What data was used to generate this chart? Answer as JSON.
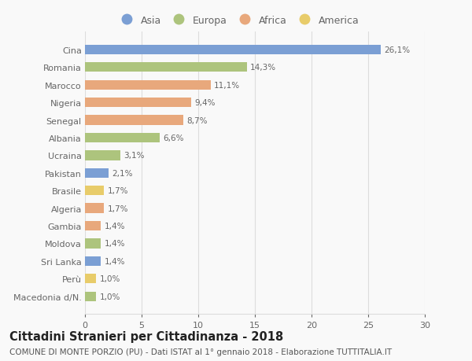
{
  "countries": [
    "Cina",
    "Romania",
    "Marocco",
    "Nigeria",
    "Senegal",
    "Albania",
    "Ucraina",
    "Pakistan",
    "Brasile",
    "Algeria",
    "Gambia",
    "Moldova",
    "Sri Lanka",
    "Perù",
    "Macedonia d/N."
  ],
  "values": [
    26.1,
    14.3,
    11.1,
    9.4,
    8.7,
    6.6,
    3.1,
    2.1,
    1.7,
    1.7,
    1.4,
    1.4,
    1.4,
    1.0,
    1.0
  ],
  "continents": [
    "Asia",
    "Europa",
    "Africa",
    "Africa",
    "Africa",
    "Europa",
    "Europa",
    "Asia",
    "America",
    "Africa",
    "Africa",
    "Europa",
    "Asia",
    "America",
    "Europa"
  ],
  "continent_colors": {
    "Asia": "#7b9fd4",
    "Europa": "#adc47d",
    "Africa": "#e8a87c",
    "America": "#e8cc6a"
  },
  "legend_order": [
    "Asia",
    "Europa",
    "Africa",
    "America"
  ],
  "title": "Cittadini Stranieri per Cittadinanza - 2018",
  "subtitle": "COMUNE DI MONTE PORZIO (PU) - Dati ISTAT al 1° gennaio 2018 - Elaborazione TUTTITALIA.IT",
  "xlim": [
    0,
    30
  ],
  "xticks": [
    0,
    5,
    10,
    15,
    20,
    25,
    30
  ],
  "bg_color": "#f9f9f9",
  "grid_color": "#dddddd",
  "bar_height": 0.55,
  "title_fontsize": 10.5,
  "subtitle_fontsize": 7.5,
  "label_fontsize": 7.5,
  "tick_fontsize": 8,
  "legend_fontsize": 9
}
